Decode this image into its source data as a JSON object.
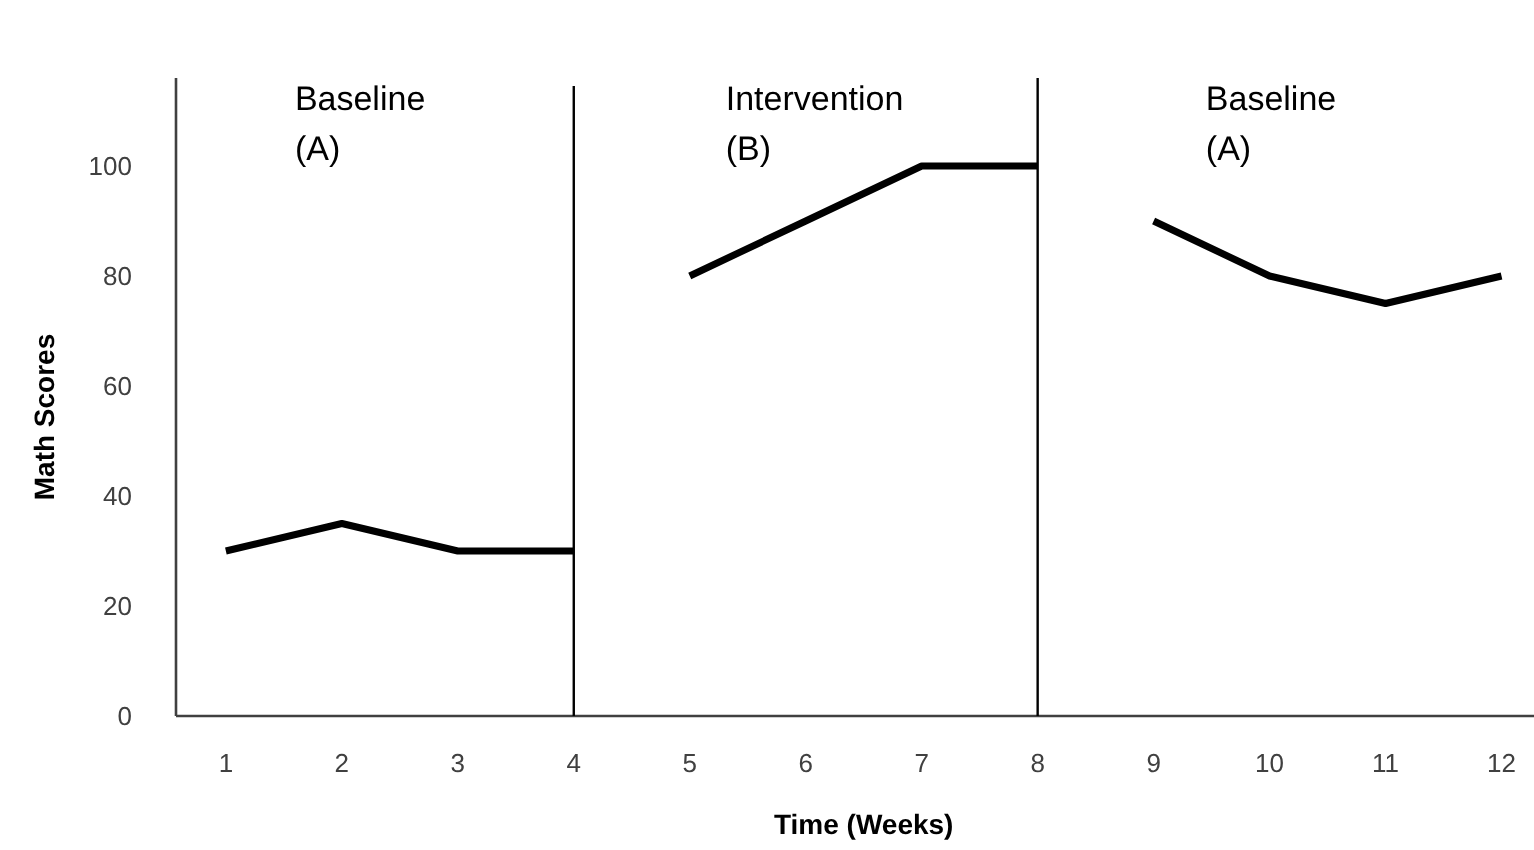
{
  "chart_data": {
    "type": "line",
    "xlabel": "Time (Weeks)",
    "ylabel": "Math Scores",
    "xlim": [
      0.57,
      12.28
    ],
    "xticks": [
      1,
      2,
      3,
      4,
      5,
      6,
      7,
      8,
      9,
      10,
      11,
      12
    ],
    "ylim": [
      0,
      116
    ],
    "yticks": [
      0,
      20,
      40,
      60,
      80,
      100
    ],
    "grid": false,
    "marker": "none",
    "line_style": "solid",
    "series": [
      {
        "color": "#000000",
        "x": [
          1,
          2,
          3,
          4
        ],
        "values": [
          30,
          35,
          30,
          30
        ]
      },
      {
        "color": "#000000",
        "x": [
          5,
          6,
          7,
          8
        ],
        "values": [
          80,
          90,
          100,
          100
        ]
      },
      {
        "color": "#000000",
        "x": [
          9,
          10,
          11,
          12
        ],
        "values": [
          90,
          80,
          75,
          80
        ]
      }
    ],
    "ref_lines": [
      {
        "axis": "x",
        "value": 4,
        "color": "#000000"
      },
      {
        "axis": "x",
        "value": 8,
        "color": "#000000"
      }
    ],
    "annotations": [
      "Baseline\n(A)",
      "Intervention\n(B)",
      "Baseline\n(A)"
    ]
  }
}
